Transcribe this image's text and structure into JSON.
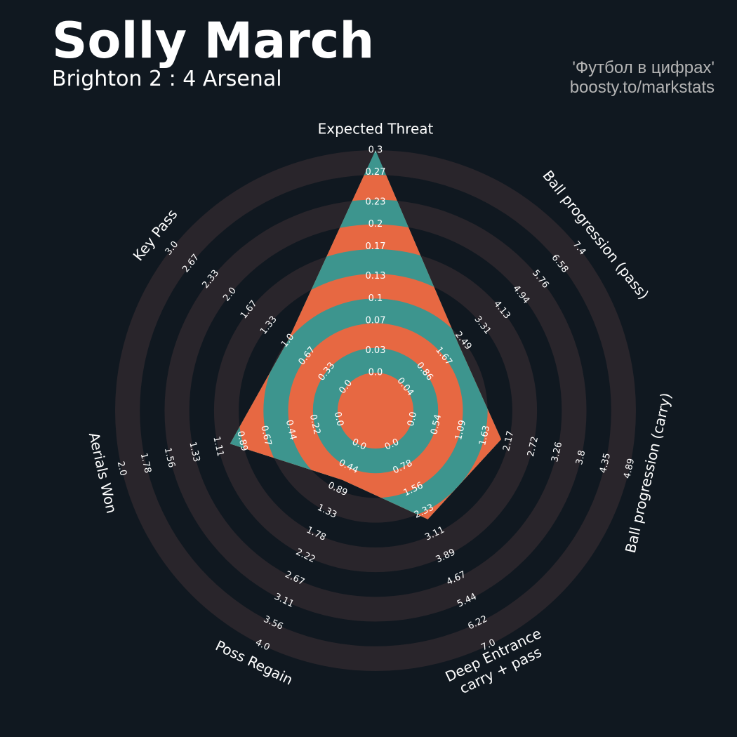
{
  "chart_data": {
    "type": "radar",
    "title": "Solly March",
    "subtitle": "Brighton 2 : 4 Arsenal",
    "credits": [
      "'Футбол в цифрах'",
      "boosty.to/markstats"
    ],
    "ring_color": "#29252b",
    "fill_colors": [
      "#e76842",
      "#3d958e"
    ],
    "axes": [
      {
        "label": [
          "Expected Threat"
        ],
        "lim": [
          0,
          0.3
        ],
        "value": 0.3,
        "ticks": [
          {
            "value": 0,
            "label": "0.0"
          },
          0.03,
          0.07,
          0.1,
          0.13,
          0.17,
          0.2,
          0.23,
          0.27,
          0.3
        ]
      },
      {
        "label": [
          "Ball progression (pass)"
        ],
        "lim": [
          0.04,
          7.4
        ],
        "value": 2.3,
        "ticks": [
          0.04,
          0.86,
          1.67,
          2.49,
          3.31,
          4.13,
          4.94,
          5.76,
          6.58,
          7.4
        ]
      },
      {
        "label": [
          "Ball progression (carry)"
        ],
        "lim": [
          0,
          4.89
        ],
        "value": 2.0,
        "ticks": [
          {
            "value": 0,
            "label": "0.0"
          },
          0.54,
          1.09,
          1.63,
          2.17,
          2.72,
          3.26,
          3.8,
          4.35,
          4.89
        ]
      },
      {
        "label": [
          "Deep Entrance",
          "carry + pass"
        ],
        "lim": [
          0,
          7
        ],
        "value": 2.6,
        "ticks": [
          {
            "value": 0,
            "label": "0.0"
          },
          0.78,
          1.56,
          2.33,
          3.11,
          3.89,
          4.67,
          5.44,
          6.22,
          {
            "value": 7,
            "label": "7.0"
          }
        ]
      },
      {
        "label": [
          "Poss Regain"
        ],
        "lim": [
          0,
          4
        ],
        "value": 0.7,
        "ticks": [
          {
            "value": 0,
            "label": "0.0"
          },
          0.44,
          0.89,
          1.33,
          1.78,
          2.22,
          2.67,
          3.11,
          3.56,
          {
            "value": 4,
            "label": "4.0"
          }
        ]
      },
      {
        "label": [
          "Aerials Won"
        ],
        "lim": [
          0,
          2
        ],
        "value": 1.0,
        "ticks": [
          {
            "value": 0,
            "label": "0.0"
          },
          0.22,
          0.44,
          0.67,
          0.89,
          1.11,
          1.33,
          1.56,
          1.78,
          {
            "value": 2,
            "label": "2.0"
          }
        ]
      },
      {
        "label": [
          "Key Pass"
        ],
        "lim": [
          0,
          3
        ],
        "value": 1.0,
        "ticks": [
          {
            "value": 0,
            "label": "0.0"
          },
          0.33,
          0.67,
          {
            "value": 1,
            "label": "1.0"
          },
          1.33,
          1.67,
          {
            "value": 2,
            "label": "2.0"
          },
          2.33,
          2.67,
          {
            "value": 3,
            "label": "3.0"
          }
        ]
      }
    ]
  }
}
